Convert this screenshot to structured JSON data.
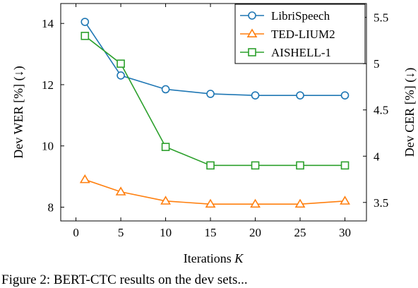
{
  "chart_data": {
    "type": "line",
    "x": [
      1,
      5,
      10,
      15,
      20,
      25,
      30
    ],
    "xlabel": "Iterations K",
    "xticks": [
      "0",
      "5",
      "10",
      "15",
      "20",
      "25",
      "30"
    ],
    "xlim": [
      -1.7,
      32.4
    ],
    "ylabel_left": "Dev WER [%] (↓)",
    "ylabel_right": "Dev CER [%] (↓)",
    "ylim_left": [
      7.55,
      14.65
    ],
    "ylim_right": [
      3.3,
      5.65
    ],
    "yticks_left": [
      "8",
      "10",
      "12",
      "14"
    ],
    "yticks_right": [
      "3.5",
      "4",
      "4.5",
      "5",
      "5.5"
    ],
    "grid": false,
    "legend_position": "top-right",
    "series": [
      {
        "name": "LibriSpeech",
        "axis": "left",
        "marker": "circle",
        "color": "#1f77b4",
        "values": [
          14.05,
          12.3,
          11.85,
          11.7,
          11.65,
          11.65,
          11.65
        ]
      },
      {
        "name": "TED-LIUM2",
        "axis": "left",
        "marker": "triangle",
        "color": "#ff7f0e",
        "values": [
          8.9,
          8.5,
          8.2,
          8.1,
          8.1,
          8.1,
          8.2
        ]
      },
      {
        "name": "AISHELL-1",
        "axis": "right",
        "marker": "square",
        "color": "#2ca02c",
        "values": [
          5.3,
          5.0,
          4.1,
          3.9,
          3.9,
          3.9,
          3.9
        ]
      }
    ]
  },
  "caption": "Figure 2:  BERT-CTC results on the dev sets..."
}
